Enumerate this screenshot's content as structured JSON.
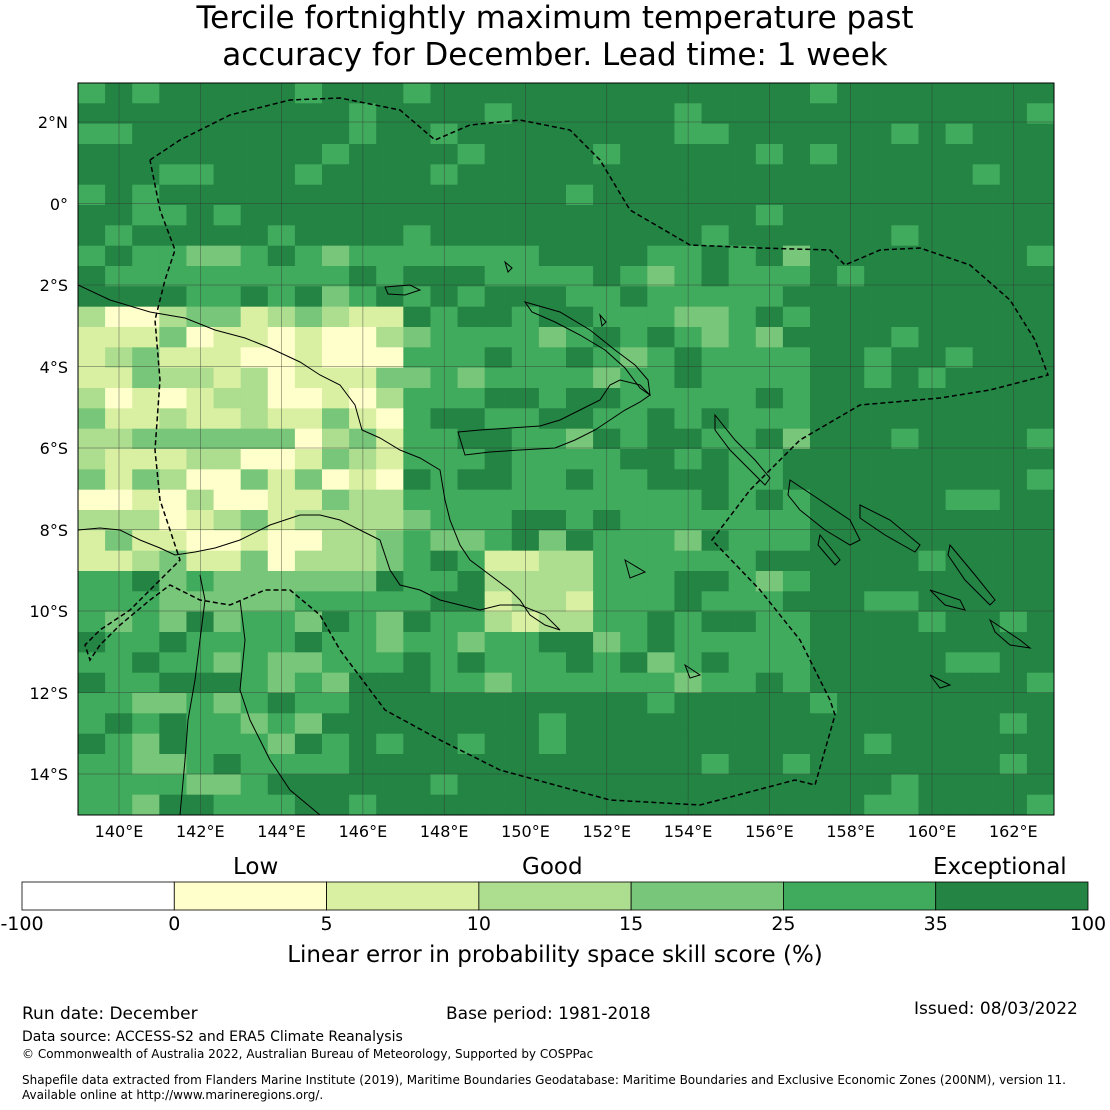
{
  "title": {
    "line1": "Tercile fortnightly maximum temperature past",
    "line2": "accuracy for December. Lead time: 1 week"
  },
  "map": {
    "latitude_ticks": [
      "2°N",
      "0°",
      "2°S",
      "4°S",
      "6°S",
      "8°S",
      "10°S",
      "12°S",
      "14°S"
    ],
    "longitude_ticks": [
      "140°E",
      "142°E",
      "144°E",
      "146°E",
      "148°E",
      "150°E",
      "152°E",
      "154°E",
      "156°E",
      "158°E",
      "160°E",
      "162°E"
    ],
    "lon_range": [
      139,
      163
    ],
    "lat_range": [
      -15,
      3
    ]
  },
  "colorbar": {
    "categories": [
      "Low",
      "Good",
      "Exceptional"
    ],
    "boundaries": [
      "-100",
      "0",
      "5",
      "10",
      "15",
      "25",
      "35",
      "100"
    ],
    "colors": [
      "#ffffff",
      "#ffffcc",
      "#d9f0a3",
      "#addd8e",
      "#78c679",
      "#41ab5d",
      "#238443"
    ],
    "label": "Linear error in probability space skill score (%)"
  },
  "footer": {
    "run_date": "Run date: December",
    "base_period": "Base period: 1981-2018",
    "issued": "Issued: 08/03/2022",
    "data_source": "Data source: ACCESS-S2 and ERA5 Climate Reanalysis",
    "copyright": "© Commonwealth of Australia 2022, Australian Bureau of Meteorology, Supported by COSPPac",
    "shapefile_line1": "Shapefile data extracted from Flanders Marine Institute (2019), Maritime Boundaries Geodatabase: Maritime Boundaries and Exclusive Economic Zones (200NM), version 11.",
    "shapefile_line2": "Available online at http://www.marineregions.org/."
  }
}
